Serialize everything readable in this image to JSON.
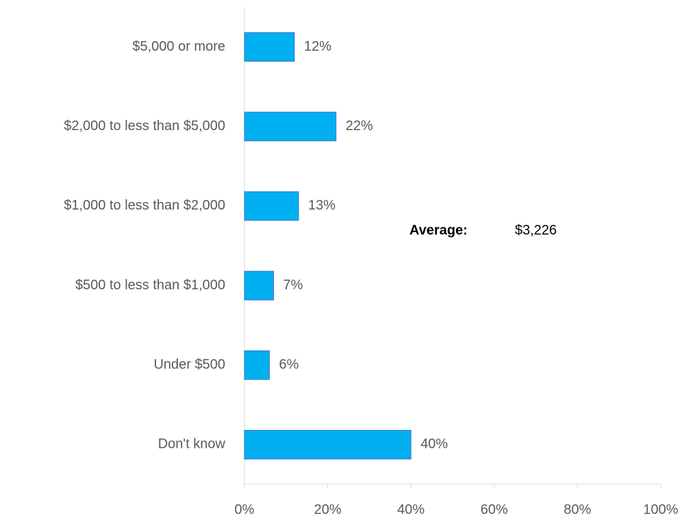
{
  "chart_data": {
    "type": "bar",
    "orientation": "horizontal",
    "categories": [
      "$5,000 or more",
      "$2,000 to less than $5,000",
      "$1,000 to less than $2,000",
      "$500 to less than $1,000",
      "Under $500",
      "Don't know"
    ],
    "values": [
      12,
      22,
      13,
      7,
      6,
      40
    ],
    "value_labels": [
      "12%",
      "22%",
      "13%",
      "7%",
      "6%",
      "40%"
    ],
    "color": "#00b0f0",
    "xlim": [
      0,
      100
    ],
    "xticks": [
      {
        "value": 0,
        "label": "0%"
      },
      {
        "value": 20,
        "label": "20%"
      },
      {
        "value": 40,
        "label": "40%"
      },
      {
        "value": 60,
        "label": "60%"
      },
      {
        "value": 80,
        "label": "80%"
      },
      {
        "value": 100,
        "label": "100%"
      }
    ],
    "grid": false,
    "annotation": {
      "label": "Average:",
      "value": "$3,226"
    }
  }
}
